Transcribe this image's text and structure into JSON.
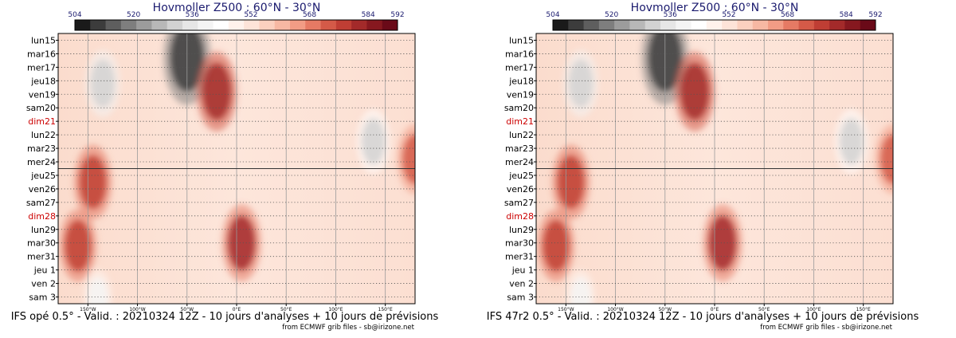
{
  "chart_data": [
    {
      "type": "heatmap",
      "title": "Hovmoller Z500 : 60°N - 30°N",
      "footer": "IFS opé 0.5° - Valid. : 20210324 12Z - 10 jours d'analyses + 10 jours de prévisions",
      "credit": "from ECMWF grib files - sb@irizone.net",
      "colorbar_ticks": [
        504,
        520,
        536,
        552,
        568,
        584,
        592
      ],
      "colorbar_colors": [
        "#1a1a1a",
        "#3c3c3c",
        "#5e5e5e",
        "#7e7e7e",
        "#9c9c9c",
        "#b8b8b8",
        "#d2d2d2",
        "#e6e6e6",
        "#f4f4f4",
        "#ffffff",
        "#fff2ec",
        "#fde3d8",
        "#fbd0bf",
        "#f7b8a3",
        "#f29c85",
        "#e67a64",
        "#d45a48",
        "#bf3e34",
        "#a32a2a",
        "#86181f",
        "#6a0a18"
      ],
      "x_ticks": [
        "150°W",
        "100°W",
        "50°W",
        "0°E",
        "50°E",
        "100°E",
        "150°E"
      ],
      "y_labels": [
        "lun15",
        "mar16",
        "mer17",
        "jeu18",
        "ven19",
        "sam20",
        "dim21",
        "lun22",
        "mar23",
        "mer24",
        "jeu25",
        "ven26",
        "sam27",
        "dim28",
        "lun29",
        "mar30",
        "mer31",
        "jeu 1",
        "ven 2",
        "sam 3"
      ],
      "weekend_labels": [
        "dim21",
        "dim28"
      ],
      "weekend_color": "#cc0000",
      "analysis_forecast_split": "jeu25",
      "features": [
        {
          "lon": -50,
          "day": 1.3,
          "value": 508
        },
        {
          "lon": -135,
          "day": 3.2,
          "value": 530
        },
        {
          "lon": 138,
          "day": 7.5,
          "value": 532
        },
        {
          "lon": -20,
          "day": 3.8,
          "value": 584
        },
        {
          "lon": -145,
          "day": 10.5,
          "value": 580
        },
        {
          "lon": 5,
          "day": 15.0,
          "value": 582
        },
        {
          "lon": -160,
          "day": 15.2,
          "value": 578
        },
        {
          "lon": 180,
          "day": 8.8,
          "value": 576
        },
        {
          "lon": -140,
          "day": 19.0,
          "value": 540
        }
      ]
    },
    {
      "type": "heatmap",
      "title": "Hovmoller Z500 : 60°N - 30°N",
      "footer": "IFS 47r2 0.5° - Valid. : 20210324 12Z - 10 jours d'analyses + 10 jours de prévisions",
      "credit": "from ECMWF grib files - sb@irizone.net",
      "colorbar_ticks": [
        504,
        520,
        536,
        552,
        568,
        584,
        592
      ],
      "colorbar_colors": [
        "#1a1a1a",
        "#3c3c3c",
        "#5e5e5e",
        "#7e7e7e",
        "#9c9c9c",
        "#b8b8b8",
        "#d2d2d2",
        "#e6e6e6",
        "#f4f4f4",
        "#ffffff",
        "#fff2ec",
        "#fde3d8",
        "#fbd0bf",
        "#f7b8a3",
        "#f29c85",
        "#e67a64",
        "#d45a48",
        "#bf3e34",
        "#a32a2a",
        "#86181f",
        "#6a0a18"
      ],
      "x_ticks": [
        "150°W",
        "100°W",
        "50°W",
        "0°E",
        "50°E",
        "100°E",
        "150°E"
      ],
      "y_labels": [
        "lun15",
        "mar16",
        "mer17",
        "jeu18",
        "ven19",
        "sam20",
        "dim21",
        "lun22",
        "mar23",
        "mer24",
        "jeu25",
        "ven26",
        "sam27",
        "dim28",
        "lun29",
        "mar30",
        "mer31",
        "jeu 1",
        "ven 2",
        "sam 3"
      ],
      "weekend_labels": [
        "dim21",
        "dim28"
      ],
      "weekend_color": "#cc0000",
      "analysis_forecast_split": "jeu25",
      "features": [
        {
          "lon": -50,
          "day": 1.3,
          "value": 508
        },
        {
          "lon": -135,
          "day": 3.2,
          "value": 530
        },
        {
          "lon": 138,
          "day": 7.5,
          "value": 532
        },
        {
          "lon": -20,
          "day": 3.8,
          "value": 584
        },
        {
          "lon": -145,
          "day": 10.5,
          "value": 580
        },
        {
          "lon": 8,
          "day": 15.0,
          "value": 582
        },
        {
          "lon": -160,
          "day": 15.2,
          "value": 578
        },
        {
          "lon": 180,
          "day": 8.8,
          "value": 576
        },
        {
          "lon": -135,
          "day": 19.0,
          "value": 540
        }
      ]
    }
  ]
}
